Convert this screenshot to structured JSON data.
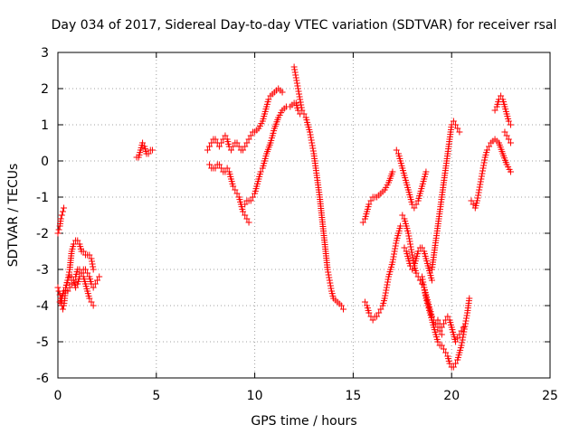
{
  "chart_data": {
    "type": "scatter",
    "title": "Day 034 of 2017, Sidereal Day-to-day VTEC variation (SDTVAR) for receiver rsal",
    "xlabel": "GPS time / hours",
    "ylabel": "SDTVAR / TECUs",
    "xlim": [
      0,
      25
    ],
    "ylim": [
      -6,
      3
    ],
    "x_ticks": [
      0,
      5,
      10,
      15,
      20,
      25
    ],
    "y_ticks": [
      -6,
      -5,
      -4,
      -3,
      -2,
      -1,
      0,
      1,
      2,
      3
    ],
    "grid": true,
    "legend": "none",
    "marker": "+",
    "color": "#ff0000",
    "series": [
      {
        "x": [
          0.0,
          0.05,
          0.1,
          0.15,
          0.2,
          0.25,
          0.3
        ],
        "y": [
          -2.0,
          -1.9,
          -1.8,
          -1.6,
          -1.5,
          -1.4,
          -1.3
        ]
      },
      {
        "x": [
          0.0,
          0.05,
          0.1,
          0.15,
          0.2,
          0.25,
          0.3,
          0.35,
          0.4,
          0.5,
          0.6,
          0.7,
          0.8,
          0.9,
          1.0,
          1.1,
          1.2,
          1.3,
          1.4,
          1.5,
          1.6,
          1.7,
          1.8
        ],
        "y": [
          -3.5,
          -3.6,
          -3.7,
          -3.8,
          -4.0,
          -4.1,
          -4.0,
          -3.8,
          -3.5,
          -3.3,
          -3.0,
          -2.5,
          -2.3,
          -2.2,
          -2.2,
          -2.3,
          -2.5,
          -2.5,
          -2.6,
          -2.6,
          -2.6,
          -2.7,
          -3.0
        ]
      },
      {
        "x": [
          0.1,
          0.2,
          0.3,
          0.4,
          0.5,
          0.6,
          0.7,
          0.8,
          0.9,
          1.0,
          1.1,
          1.2,
          1.3,
          1.4,
          1.5,
          1.6,
          1.7,
          1.8,
          1.9,
          2.0,
          2.1
        ],
        "y": [
          -3.9,
          -3.8,
          -3.6,
          -3.5,
          -3.3,
          -3.2,
          -3.2,
          -3.3,
          -3.5,
          -3.4,
          -3.2,
          -3.1,
          -3.0,
          -3.0,
          -3.1,
          -3.2,
          -3.4,
          -3.5,
          -3.4,
          -3.3,
          -3.2
        ]
      },
      {
        "x": [
          0.5,
          0.6,
          0.7,
          0.8,
          0.9,
          1.0,
          1.1,
          1.2,
          1.3,
          1.4,
          1.5,
          1.6,
          1.7,
          1.8
        ],
        "y": [
          -3.6,
          -3.5,
          -3.4,
          -3.3,
          -3.2,
          -3.0,
          -3.0,
          -3.1,
          -3.2,
          -3.4,
          -3.6,
          -3.8,
          -3.9,
          -4.0
        ]
      },
      {
        "x": [
          4.0,
          4.1,
          4.2,
          4.3,
          4.4,
          4.5,
          4.6,
          4.7,
          4.8
        ],
        "y": [
          0.1,
          0.1,
          0.3,
          0.5,
          0.4,
          0.2,
          0.2,
          0.3,
          0.3
        ]
      },
      {
        "x": [
          7.6,
          7.7,
          7.8,
          7.9,
          8.0,
          8.1,
          8.2,
          8.3,
          8.4,
          8.5,
          8.6,
          8.7,
          8.8,
          8.9,
          9.0,
          9.1,
          9.2,
          9.3,
          9.4,
          9.5,
          9.6,
          9.7,
          9.8,
          9.9,
          10.0,
          10.2,
          10.4,
          10.5,
          10.6,
          10.7,
          10.8,
          11.0,
          11.2,
          11.4
        ],
        "y": [
          0.3,
          0.4,
          0.5,
          0.6,
          0.6,
          0.5,
          0.4,
          0.5,
          0.6,
          0.7,
          0.6,
          0.4,
          0.3,
          0.4,
          0.5,
          0.5,
          0.4,
          0.3,
          0.3,
          0.4,
          0.5,
          0.6,
          0.7,
          0.8,
          0.8,
          0.9,
          1.1,
          1.3,
          1.5,
          1.7,
          1.8,
          1.9,
          2.0,
          1.9
        ]
      },
      {
        "x": [
          7.7,
          7.8,
          7.9,
          8.0,
          8.1,
          8.2,
          8.3,
          8.4,
          8.5,
          8.6,
          8.7,
          8.8,
          8.9,
          9.0,
          9.1,
          9.2,
          9.3,
          9.4,
          9.5,
          9.6,
          9.7
        ],
        "y": [
          -0.1,
          -0.2,
          -0.2,
          -0.2,
          -0.1,
          -0.1,
          -0.2,
          -0.3,
          -0.3,
          -0.2,
          -0.3,
          -0.5,
          -0.7,
          -0.8,
          -0.9,
          -1.0,
          -1.2,
          -1.4,
          -1.5,
          -1.6,
          -1.7
        ]
      },
      {
        "x": [
          9.5,
          9.6,
          9.7,
          9.8,
          9.9,
          10.0,
          10.1,
          10.2,
          10.3,
          10.4,
          10.5,
          10.6,
          10.8,
          11.0,
          11.2,
          11.4,
          11.6,
          11.8,
          12.0,
          12.1,
          12.2,
          12.3
        ],
        "y": [
          -1.2,
          -1.1,
          -1.1,
          -1.1,
          -1.0,
          -0.9,
          -0.7,
          -0.5,
          -0.3,
          -0.2,
          0.0,
          0.2,
          0.5,
          0.9,
          1.2,
          1.4,
          1.5,
          1.5,
          1.6,
          1.6,
          1.4,
          1.3
        ]
      },
      {
        "x": [
          12.0,
          12.1,
          12.2,
          12.3,
          12.4,
          12.5,
          12.6,
          12.7,
          12.8,
          12.9,
          13.0,
          13.1,
          13.2,
          13.3,
          13.4,
          13.5,
          13.6,
          13.7,
          13.8,
          13.9,
          14.0,
          14.2,
          14.4,
          14.5
        ],
        "y": [
          2.6,
          2.3,
          2.0,
          1.7,
          1.4,
          1.3,
          1.2,
          1.0,
          0.8,
          0.5,
          0.2,
          -0.2,
          -0.6,
          -1.0,
          -1.5,
          -2.0,
          -2.5,
          -3.0,
          -3.3,
          -3.6,
          -3.8,
          -3.9,
          -4.0,
          -4.1
        ]
      },
      {
        "x": [
          15.5,
          15.6,
          15.7,
          15.8,
          15.9,
          16.0,
          16.1,
          16.2,
          16.4,
          16.6,
          16.8,
          17.0
        ],
        "y": [
          -1.7,
          -1.6,
          -1.4,
          -1.2,
          -1.1,
          -1.0,
          -1.0,
          -1.0,
          -0.9,
          -0.8,
          -0.6,
          -0.3
        ]
      },
      {
        "x": [
          15.6,
          15.7,
          15.8,
          15.9,
          16.0,
          16.1,
          16.2,
          16.3,
          16.4,
          16.5,
          16.6,
          16.7,
          16.8,
          16.9,
          17.0,
          17.1,
          17.2,
          17.3,
          17.4
        ],
        "y": [
          -3.9,
          -4.0,
          -4.2,
          -4.3,
          -4.4,
          -4.3,
          -4.3,
          -4.2,
          -4.1,
          -4.0,
          -3.8,
          -3.5,
          -3.2,
          -3.0,
          -2.8,
          -2.5,
          -2.2,
          -2.0,
          -1.8
        ]
      },
      {
        "x": [
          17.2,
          17.3,
          17.4,
          17.5,
          17.6,
          17.7,
          17.8,
          17.9,
          18.0,
          18.1,
          18.2,
          18.3,
          18.4,
          18.5,
          18.6,
          18.7
        ],
        "y": [
          0.3,
          0.2,
          0.0,
          -0.2,
          -0.4,
          -0.6,
          -0.8,
          -1.0,
          -1.2,
          -1.3,
          -1.2,
          -1.1,
          -0.9,
          -0.7,
          -0.5,
          -0.3
        ]
      },
      {
        "x": [
          17.5,
          17.6,
          17.7,
          17.8,
          17.9,
          18.0,
          18.1,
          18.2,
          18.3,
          18.4,
          18.5,
          18.6,
          18.7,
          18.8,
          18.9,
          19.0,
          19.1,
          19.2,
          19.3,
          19.4,
          19.5
        ],
        "y": [
          -1.5,
          -1.6,
          -1.8,
          -2.0,
          -2.3,
          -2.6,
          -2.9,
          -3.1,
          -3.2,
          -3.3,
          -3.4,
          -3.5,
          -3.7,
          -3.9,
          -4.1,
          -4.3,
          -4.4,
          -4.5,
          -4.6,
          -4.7,
          -4.8
        ]
      },
      {
        "x": [
          17.6,
          17.7,
          17.8,
          17.9,
          18.0,
          18.1,
          18.2,
          18.3,
          18.4,
          18.5,
          18.6,
          18.7,
          18.8,
          18.9,
          19.0
        ],
        "y": [
          -2.4,
          -2.5,
          -2.7,
          -2.9,
          -3.0,
          -2.9,
          -2.7,
          -2.5,
          -2.4,
          -2.4,
          -2.5,
          -2.7,
          -2.9,
          -3.1,
          -3.3
        ]
      },
      {
        "x": [
          18.5,
          18.6,
          18.7,
          18.8,
          18.9,
          19.0,
          19.1,
          19.2,
          19.3,
          19.4,
          19.5,
          19.6,
          19.7,
          19.8,
          19.9,
          20.0,
          20.1,
          20.2,
          20.3,
          20.4,
          20.5,
          20.6,
          20.7,
          20.8,
          20.9
        ],
        "y": [
          -3.2,
          -3.5,
          -3.8,
          -4.0,
          -4.2,
          -4.4,
          -4.6,
          -4.8,
          -5.0,
          -5.1,
          -5.1,
          -5.2,
          -5.3,
          -5.4,
          -5.6,
          -5.7,
          -5.7,
          -5.6,
          -5.5,
          -5.3,
          -5.1,
          -4.8,
          -4.5,
          -4.2,
          -3.8
        ]
      },
      {
        "x": [
          19.0,
          19.1,
          19.2,
          19.3,
          19.4,
          19.5,
          19.6,
          19.7,
          19.8,
          19.9,
          20.0,
          20.1,
          20.2,
          20.3,
          20.4
        ],
        "y": [
          -3.0,
          -2.6,
          -2.2,
          -1.8,
          -1.4,
          -1.0,
          -0.6,
          -0.2,
          0.2,
          0.6,
          1.0,
          1.1,
          1.0,
          0.9,
          0.8
        ]
      },
      {
        "x": [
          19.3,
          19.4,
          19.5,
          19.6,
          19.7,
          19.8,
          19.9,
          20.0,
          20.1,
          20.2,
          20.3,
          20.4,
          20.5,
          20.6,
          20.7
        ],
        "y": [
          -4.4,
          -4.5,
          -4.6,
          -4.5,
          -4.4,
          -4.3,
          -4.4,
          -4.6,
          -4.8,
          -5.0,
          -4.9,
          -4.8,
          -4.7,
          -4.6,
          -4.5
        ]
      },
      {
        "x": [
          21.0,
          21.1,
          21.2,
          21.3,
          21.4,
          21.5,
          21.6,
          21.7,
          21.8,
          21.9,
          22.0,
          22.2,
          22.4,
          22.6,
          22.8,
          23.0
        ],
        "y": [
          -1.1,
          -1.2,
          -1.3,
          -1.1,
          -0.8,
          -0.5,
          -0.2,
          0.1,
          0.3,
          0.4,
          0.5,
          0.6,
          0.5,
          0.2,
          -0.1,
          -0.3
        ]
      },
      {
        "x": [
          22.2,
          22.3,
          22.4,
          22.5,
          22.6,
          22.7,
          22.8,
          22.9,
          23.0
        ],
        "y": [
          1.4,
          1.5,
          1.7,
          1.8,
          1.7,
          1.5,
          1.3,
          1.1,
          1.0
        ]
      },
      {
        "x": [
          22.7,
          22.8,
          22.9,
          23.0
        ],
        "y": [
          0.8,
          0.7,
          0.6,
          0.5
        ]
      }
    ]
  }
}
